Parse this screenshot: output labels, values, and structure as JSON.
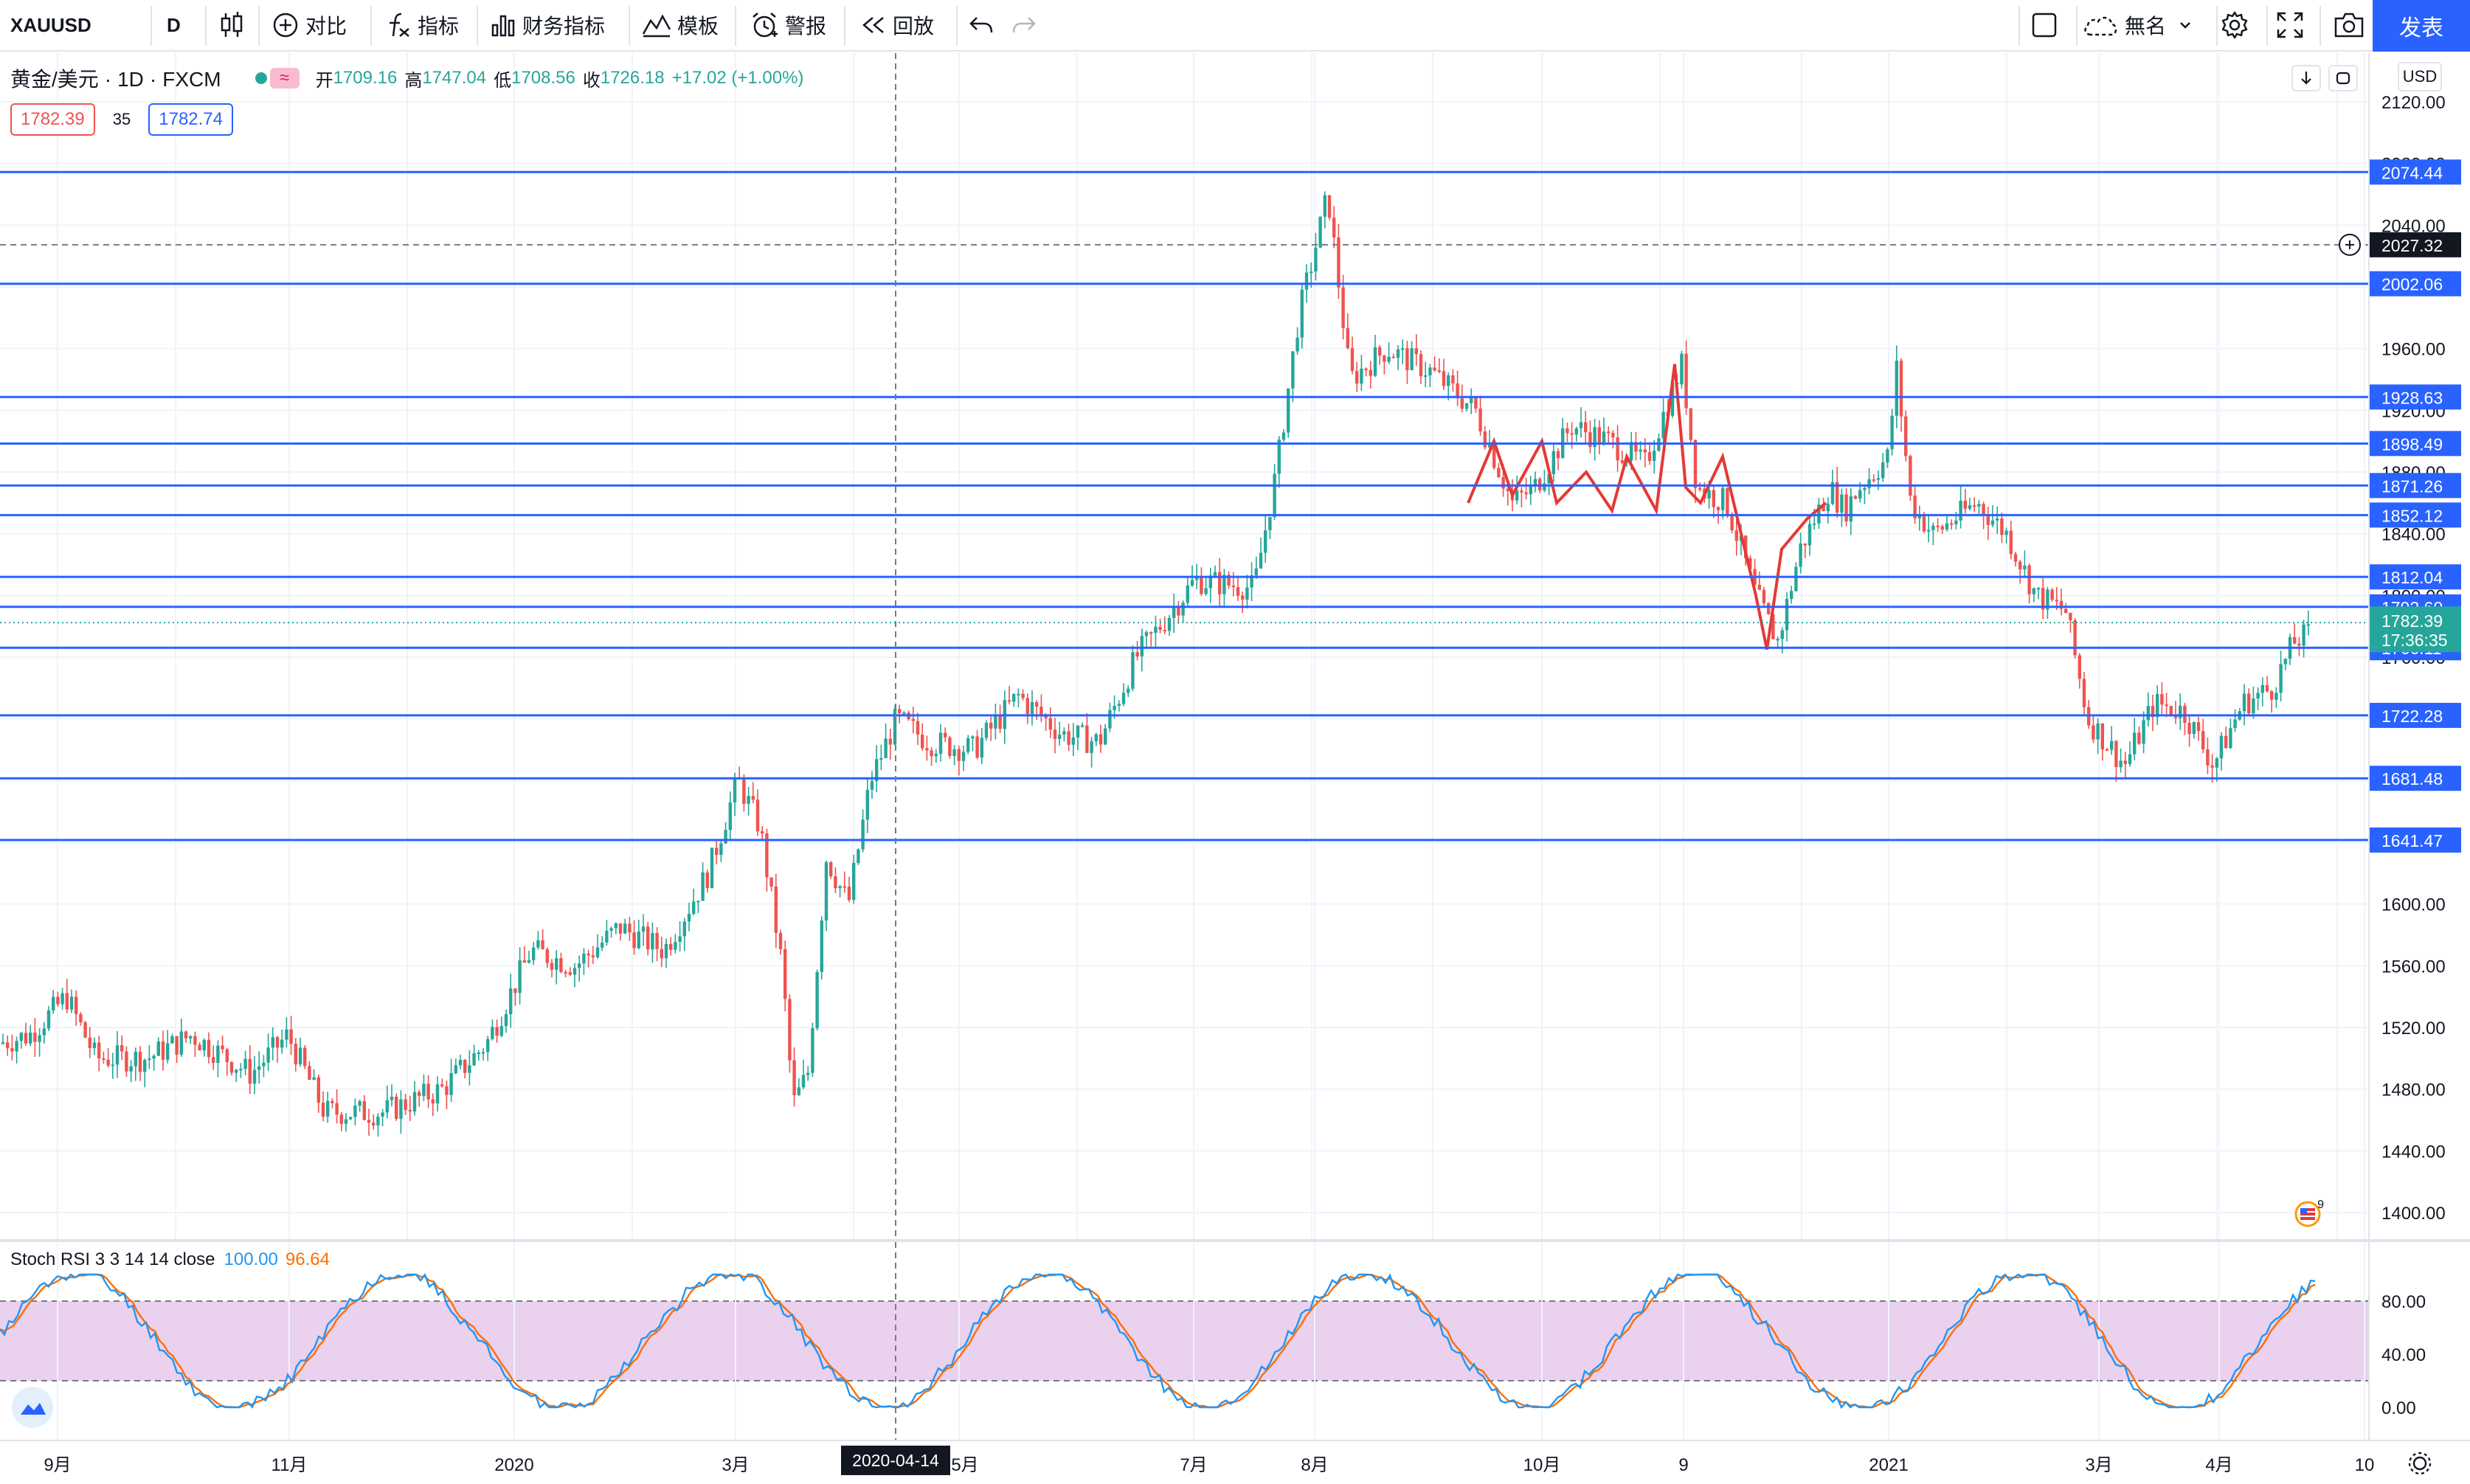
{
  "toolbar": {
    "symbol": "XAUUSD",
    "interval": "D",
    "compare_label": "对比",
    "indicators_label": "指标",
    "financials_label": "财务指标",
    "templates_label": "模板",
    "alert_label": "警报",
    "replay_label": "回放",
    "layout_name": "無名",
    "publish_label": "发表"
  },
  "legend": {
    "title": "黄金/美元",
    "interval": "1D",
    "source": "FXCM",
    "open_label": "开",
    "open": "1709.16",
    "high_label": "高",
    "high": "1747.04",
    "low_label": "低",
    "low": "1708.56",
    "close_label": "收",
    "close": "1726.18",
    "change": "+17.02 (+1.00%)",
    "sell_price": "1782.39",
    "spread": "35",
    "buy_price": "1782.74"
  },
  "currency": "USD",
  "oscillator": {
    "name": "Stoch RSI 3 3 14 14 close",
    "k_value": "100.00",
    "d_value": "96.64",
    "axis_labels": [
      "80.00",
      "40.00",
      "0.00"
    ],
    "band_upper": 80,
    "band_lower": 20
  },
  "colors": {
    "up": "#26a69a",
    "down": "#ef5350",
    "hline": "#2962ff",
    "zigzag": "#e53935",
    "stoch_k": "#2196f3",
    "stoch_d": "#ff6d00",
    "band": "#e1bee7"
  },
  "chart_data": {
    "type": "candlestick",
    "instrument": "黄金/美元",
    "ylim": [
      1380,
      2140
    ],
    "y_ticks": [
      "2120.00",
      "2080.00",
      "2040.00",
      "2000.00",
      "1960.00",
      "1920.00",
      "1880.00",
      "1840.00",
      "1800.00",
      "1760.00",
      "1720.00",
      "1680.00",
      "1640.00",
      "1600.00",
      "1560.00",
      "1520.00",
      "1480.00",
      "1440.00",
      "1400.00"
    ],
    "x_labels": [
      "9月",
      "11月",
      "2020",
      "3月",
      "5月",
      "7月",
      "8月",
      "10月",
      "9",
      "2021",
      "3月",
      "4月",
      "10"
    ],
    "crosshair_date": "2020-04-14",
    "crosshair_price": "2027.32",
    "horizontal_levels": [
      "2074.44",
      "2002.06",
      "1928.63",
      "1898.49",
      "1871.26",
      "1852.12",
      "1812.04",
      "1792.60",
      "1766.11",
      "1722.28",
      "1681.48",
      "1641.47"
    ],
    "last_price": "1782.39",
    "countdown": "17:36:35"
  }
}
